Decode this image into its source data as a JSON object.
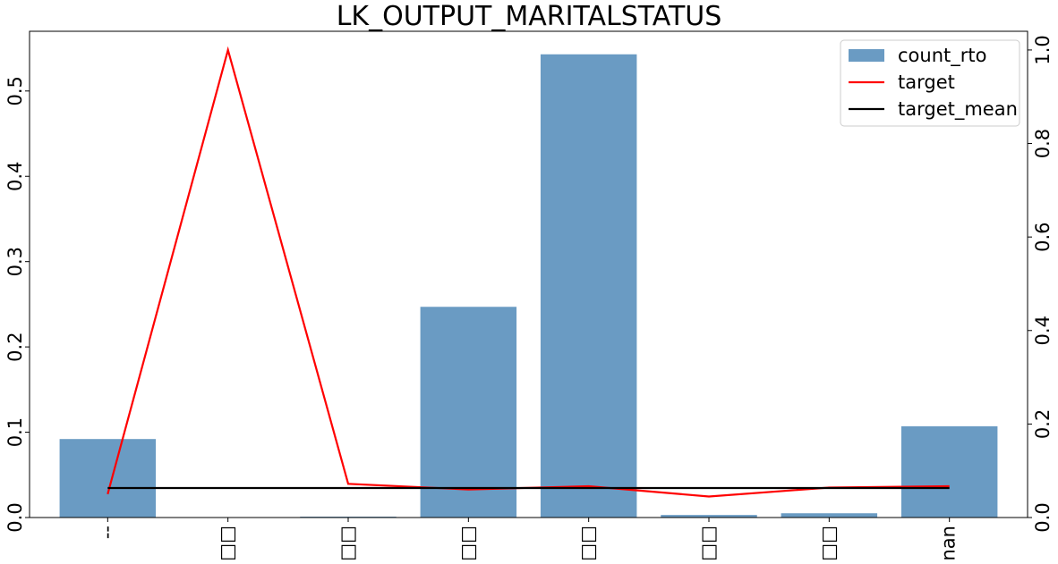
{
  "chart_data": {
    "type": "bar",
    "title": "LK_OUTPUT_MARITALSTATUS",
    "categories": [
      "--",
      "□□",
      "□□",
      "□□",
      "□□",
      "□□",
      "□□",
      "nan"
    ],
    "y_left": {
      "ylim": [
        0,
        0.57
      ],
      "ticks": [
        0.0,
        0.1,
        0.2,
        0.3,
        0.4,
        0.5
      ],
      "tick_labels": [
        "0.0",
        "0.1",
        "0.2",
        "0.3",
        "0.4",
        "0.5"
      ]
    },
    "y_right": {
      "ylim": [
        0,
        1.04
      ],
      "ticks": [
        0.0,
        0.2,
        0.4,
        0.6,
        0.8,
        1.0
      ],
      "tick_labels": [
        "0.0",
        "0.2",
        "0.4",
        "0.6",
        "0.8",
        "1.0"
      ]
    },
    "series": [
      {
        "name": "count_rto",
        "kind": "bar",
        "axis": "left",
        "color": "#6a9bc3",
        "values": [
          0.092,
          0.0,
          0.001,
          0.247,
          0.543,
          0.003,
          0.005,
          0.107
        ]
      },
      {
        "name": "target",
        "kind": "line",
        "axis": "right",
        "color": "#ff0000",
        "values": [
          0.05,
          1.0,
          0.072,
          0.06,
          0.067,
          0.045,
          0.064,
          0.067
        ]
      },
      {
        "name": "target_mean",
        "kind": "line",
        "axis": "right",
        "color": "#000000",
        "values": [
          0.063,
          0.063,
          0.063,
          0.063,
          0.063,
          0.063,
          0.063,
          0.063
        ]
      }
    ],
    "legend": {
      "position": "top-right",
      "entries": [
        "count_rto",
        "target",
        "target_mean"
      ]
    },
    "grid": false
  }
}
